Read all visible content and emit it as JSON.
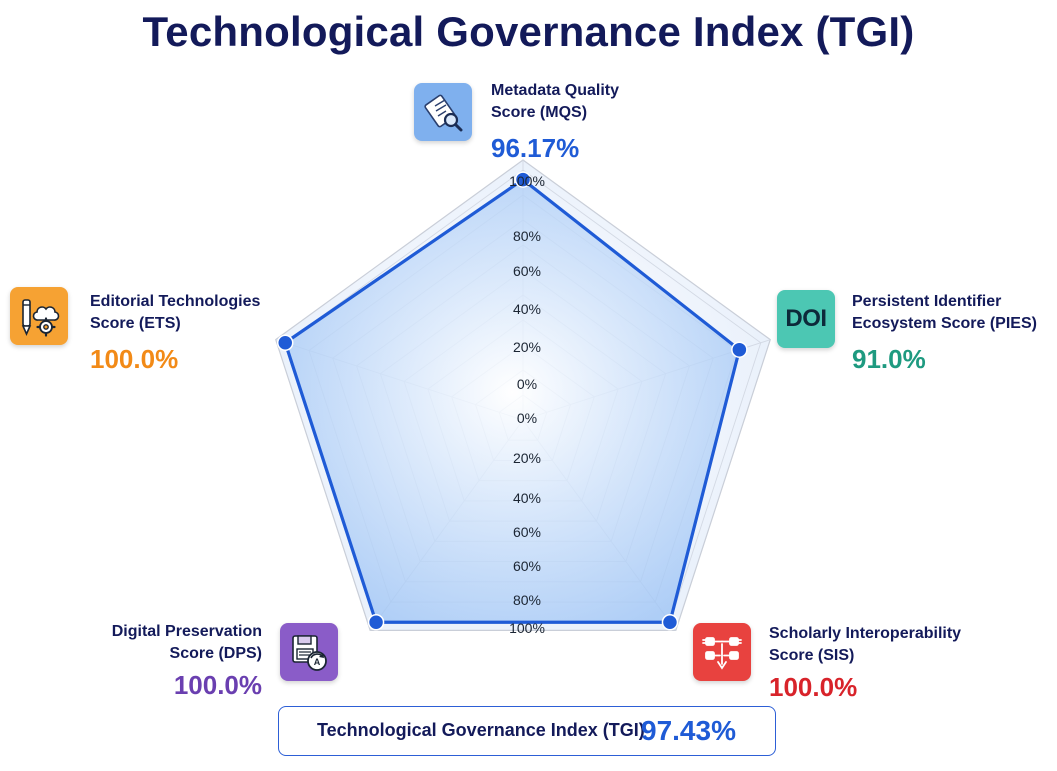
{
  "title": "Technological Governance Index (TGI)",
  "metrics": {
    "mqs": {
      "label_line1": "Metadata Quality",
      "label_line2": "Score (MQS)",
      "value_text": "96.17%",
      "color": "#1f5bd6",
      "icon": "metadata-search-icon",
      "icon_bg": "#7fb0ee"
    },
    "pies": {
      "label_line1": "Persistent Identifier",
      "label_line2": "Ecosystem Score (PIES)",
      "value_text": "91.0%",
      "color": "#1e9a80",
      "icon": "doi-icon",
      "icon_text": "DOI",
      "icon_bg": "#4cc7b3"
    },
    "sis": {
      "label_line1": "Scholarly Interoperability",
      "label_line2": "Score (SIS)",
      "value_text": "100.0%",
      "color": "#d8232a",
      "icon": "interoperability-plugs-icon",
      "icon_bg": "#e8423f"
    },
    "dps": {
      "label_line1": "Digital Preservation",
      "label_line2": "Score (DPS)",
      "value_text": "100.0%",
      "color": "#6a3fb0",
      "icon": "floppy-disk-archive-icon",
      "icon_bg": "#8a5cc8"
    },
    "ets": {
      "label_line1": "Editorial Technologies",
      "label_line2": "Score (ETS)",
      "value_text": "100.0%",
      "color": "#f28a17",
      "icon": "pen-cloud-gear-icon",
      "icon_bg": "#f6a233"
    }
  },
  "tgi": {
    "label": "Technological Governance Index (TGI)",
    "value_text": "97.43%"
  },
  "chart_data": {
    "type": "radar",
    "title": "Technological Governance Index (TGI)",
    "axes": [
      "Metadata Quality Score (MQS)",
      "Persistent Identifier Ecosystem Score (PIES)",
      "Scholarly Interoperability Score (SIS)",
      "Digital Preservation Score (DPS)",
      "Editorial Technologies Score (ETS)"
    ],
    "values": [
      96.17,
      91.0,
      100.0,
      100.0,
      100.0
    ],
    "range": [
      0,
      100
    ],
    "grid": true,
    "grid_levels": 10,
    "series_color": "#1f5bd6",
    "fill_color": "#9cc3f5",
    "tick_labels_upper": [
      "100%",
      "80%",
      "60%",
      "40%",
      "20%",
      "0%",
      "0%"
    ],
    "tick_labels_lower": [
      "20%",
      "40%",
      "60%",
      "60%",
      "80%",
      "100%"
    ]
  }
}
